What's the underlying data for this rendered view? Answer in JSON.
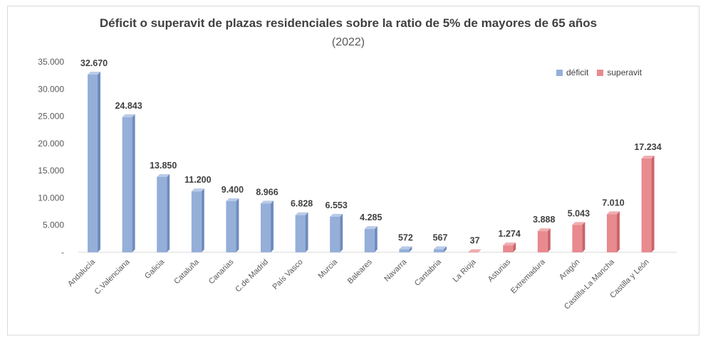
{
  "chart_data": {
    "type": "bar",
    "title": "Déficit o superavit de plazas residenciales sobre la ratio de 5% de mayores de 65 años",
    "subtitle": "(2022)",
    "categories": [
      "Andalucía",
      "C.Valenciana",
      "Galicia",
      "Cataluña",
      "Canarias",
      "C.de Madrid",
      "País Vasco",
      "Murcia",
      "Baleares",
      "Navarra",
      "Cantabria",
      "La Rioja",
      "Asturias",
      "Extremadura",
      "Aragón",
      "Castilla-La Mancha",
      "Castilla y León"
    ],
    "values": [
      32670,
      24843,
      13850,
      11200,
      9400,
      8966,
      6828,
      6553,
      4285,
      572,
      567,
      37,
      1274,
      3888,
      5043,
      7010,
      17234
    ],
    "value_labels": [
      "32.670",
      "24.843",
      "13.850",
      "11.200",
      "9.400",
      "8.966",
      "6.828",
      "6.553",
      "4.285",
      "572",
      "567",
      "37",
      "1.274",
      "3.888",
      "5.043",
      "7.010",
      "17.234"
    ],
    "series_type": [
      "deficit",
      "deficit",
      "deficit",
      "deficit",
      "deficit",
      "deficit",
      "deficit",
      "deficit",
      "deficit",
      "deficit",
      "deficit",
      "superavit",
      "superavit",
      "superavit",
      "superavit",
      "superavit",
      "superavit"
    ],
    "legend": [
      {
        "key": "deficit",
        "name": "déficit",
        "color": "#95afd9"
      },
      {
        "key": "superavit",
        "name": "superavit",
        "color": "#e88a8e"
      }
    ],
    "yticks": [
      0,
      5000,
      10000,
      15000,
      20000,
      25000,
      30000,
      35000
    ],
    "ytick_labels": [
      "-",
      "5.000",
      "10.000",
      "15.000",
      "20.000",
      "25.000",
      "30.000",
      "35.000"
    ],
    "ylim": [
      0,
      35000
    ],
    "grid": false,
    "legend_position": "top-right",
    "xlabel": "",
    "ylabel": ""
  }
}
